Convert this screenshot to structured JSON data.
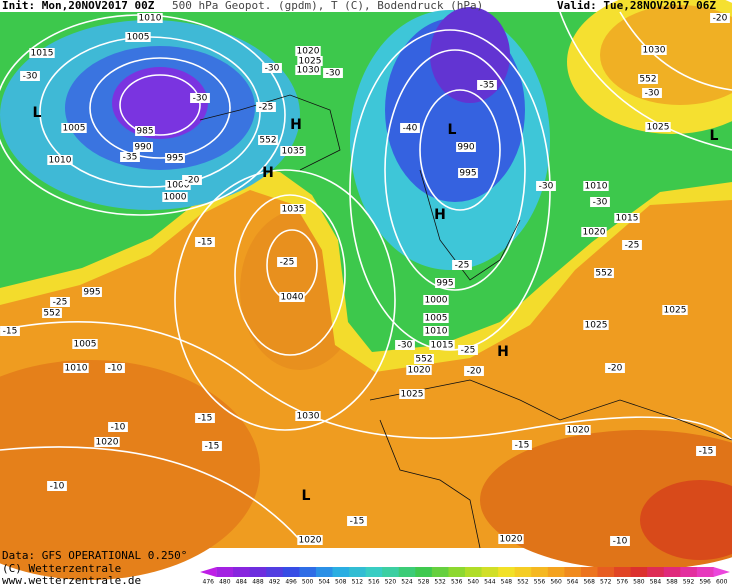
{
  "header": {
    "init": "Init: Mon,20NOV2017 00Z",
    "title": "500 hPa Geopot. (gpdm), T (C), Bodendruck (hPa)",
    "valid": "Valid: Tue,28NOV2017 06Z"
  },
  "footer": {
    "data": "Data: GFS OPERATIONAL 0.250°",
    "copyright": "(C) Wetterzentrale",
    "url": "www.wetterzentrale.de"
  },
  "colorbar": [
    476,
    480,
    484,
    488,
    492,
    496,
    500,
    504,
    508,
    512,
    516,
    520,
    524,
    528,
    532,
    536,
    540,
    544,
    548,
    552,
    556,
    560,
    564,
    568,
    572,
    576,
    580,
    584,
    588,
    592,
    596,
    600
  ],
  "map_labels": [
    "1010",
    "1005",
    "1015",
    "-30",
    "L",
    "1005",
    "1010",
    "985",
    "990",
    "995",
    "-35",
    "-30",
    "1000",
    "1000",
    "-20",
    "H",
    "1035",
    "H",
    "-25",
    "-30",
    "1020",
    "1025",
    "1030",
    "-30",
    "1035",
    "-15",
    "-25",
    "1040",
    "995",
    "-25",
    "1005",
    "1010",
    "-10",
    "-15",
    "1020",
    "-10",
    "-15",
    "-15",
    "-10",
    "1030",
    "L",
    "-15",
    "1020",
    "1020",
    "-10",
    "1020",
    "-15",
    "-15",
    "L",
    "990",
    "995",
    "H",
    "-40",
    "-35",
    "-30",
    "1010",
    "-30",
    "1015",
    "1020",
    "-25",
    "1025",
    "1025",
    "H",
    "995",
    "1000",
    "1005",
    "1010",
    "1015",
    "1020",
    "-20",
    "-25",
    "1025",
    "-30",
    "1030",
    "-30",
    "1025",
    "L",
    "-20",
    "552",
    "552",
    "552",
    "552",
    "552",
    "-25",
    "-20"
  ]
}
